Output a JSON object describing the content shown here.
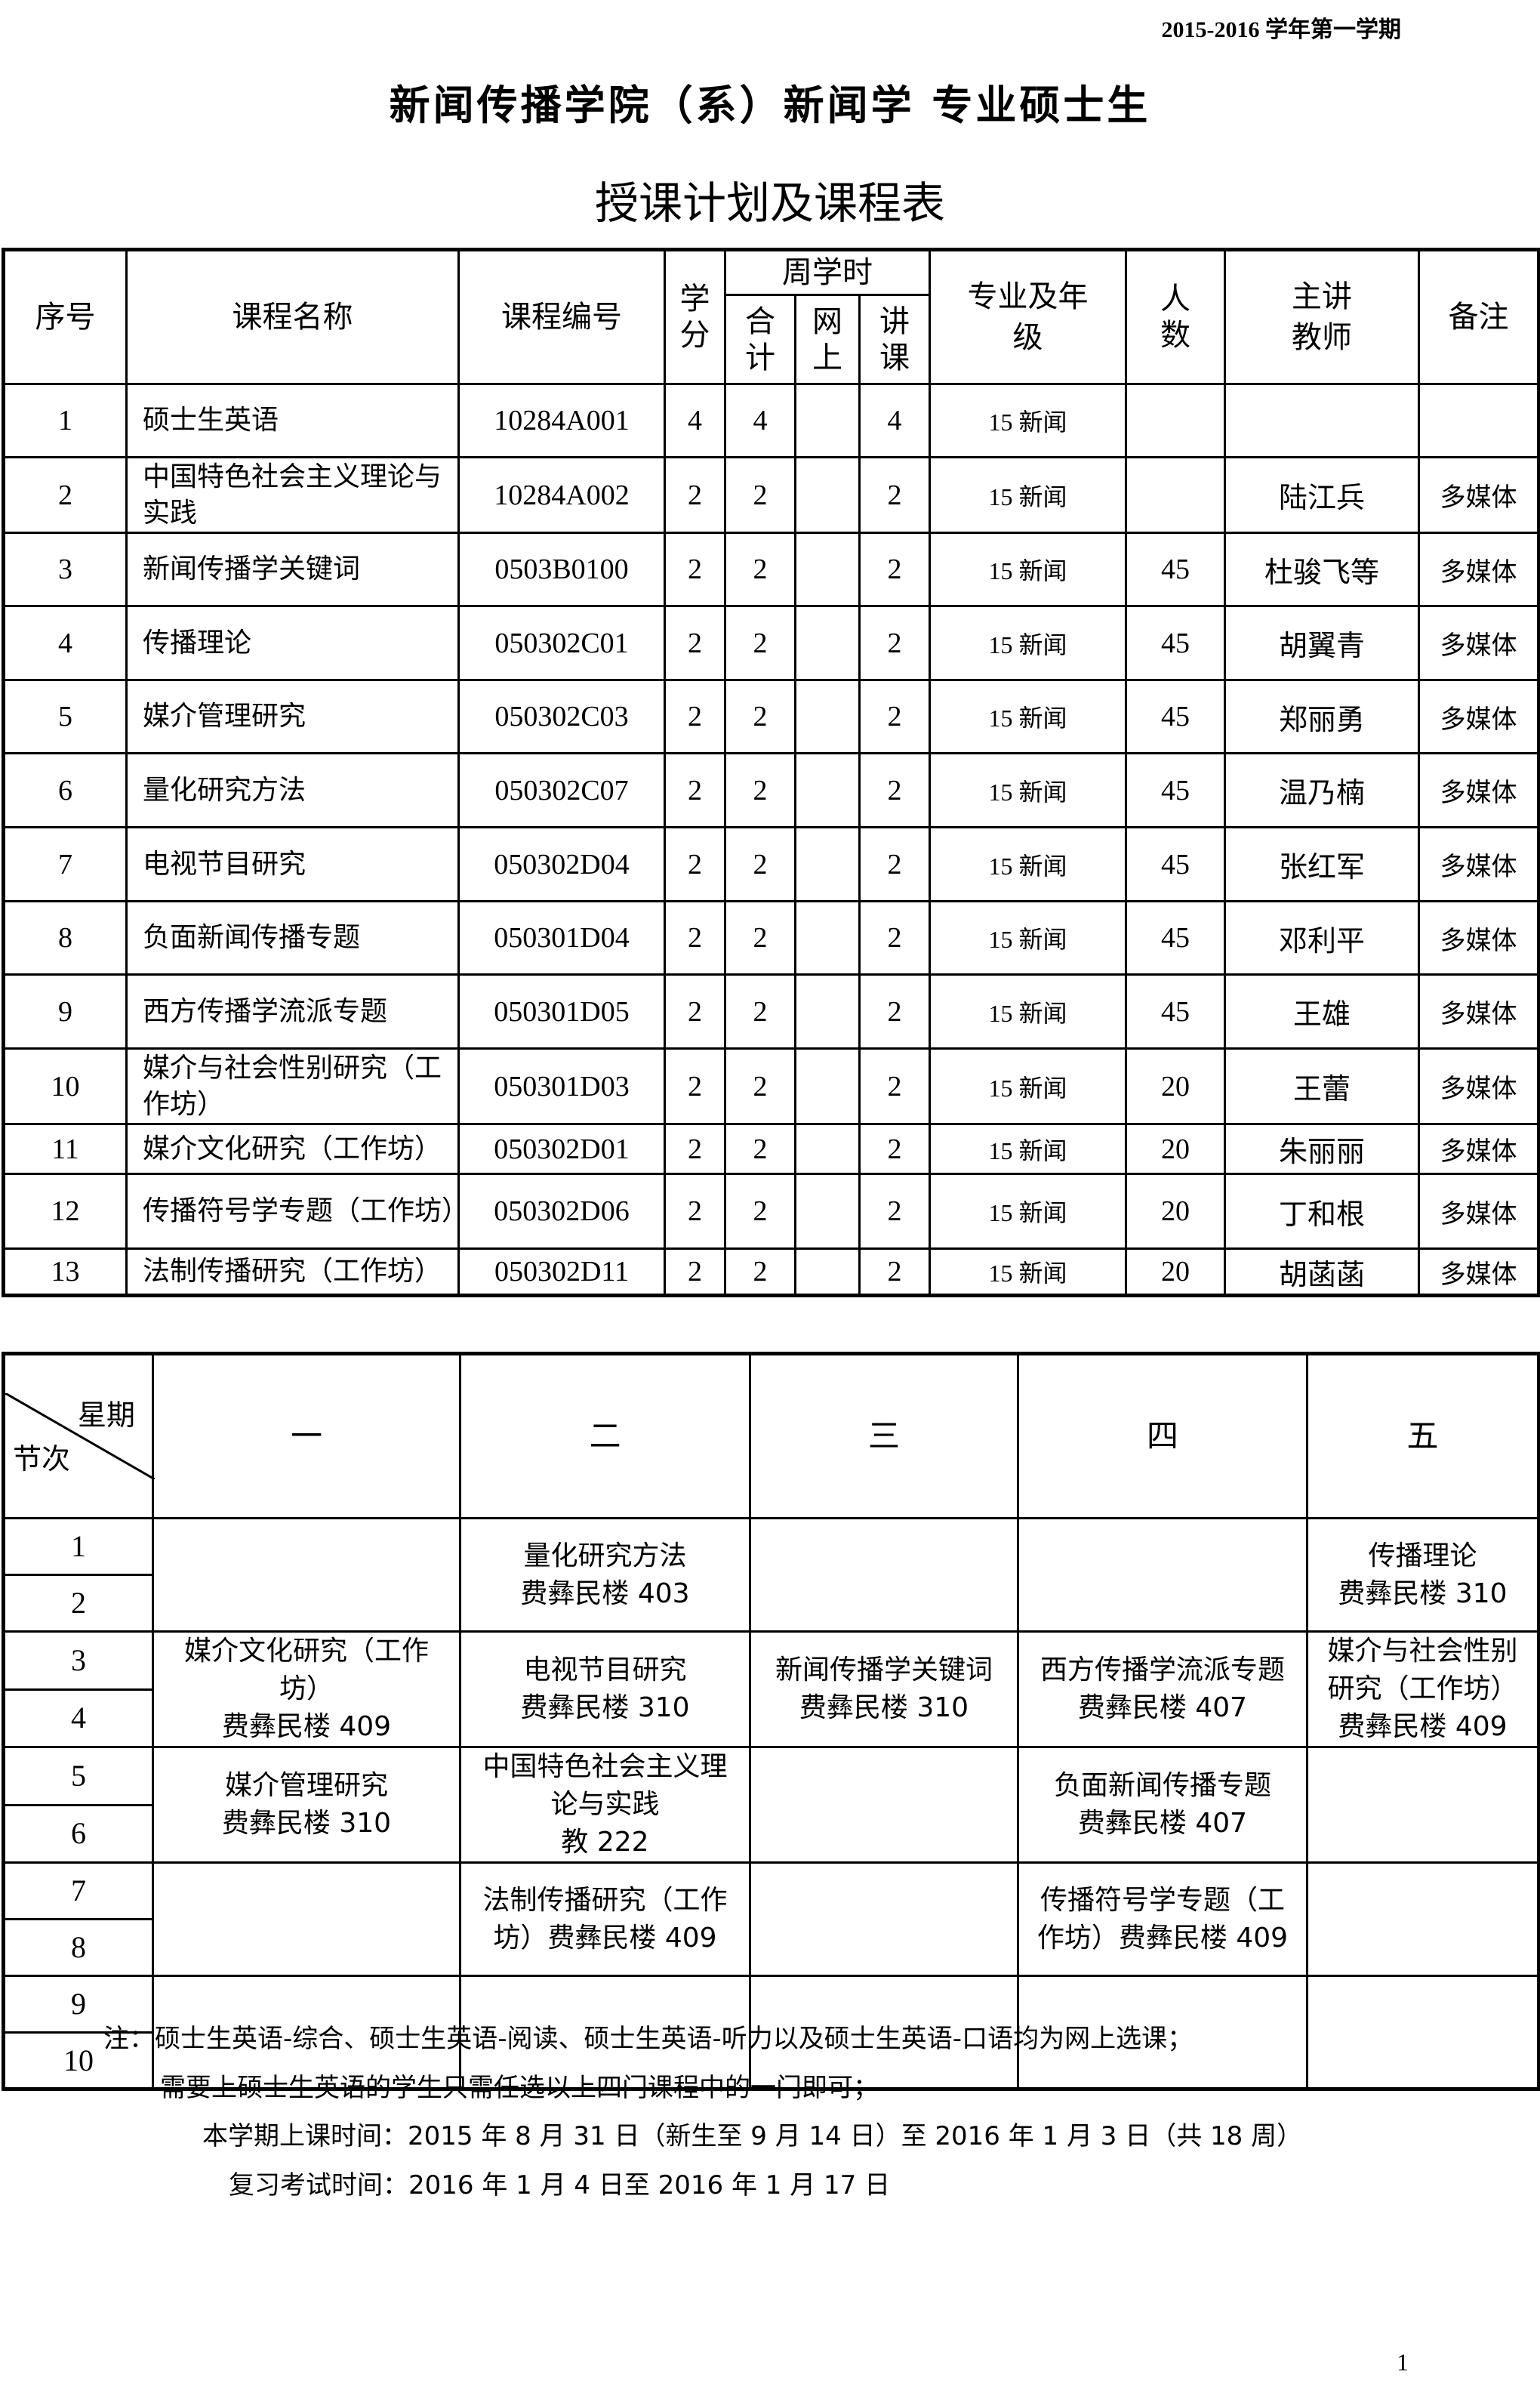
{
  "semester": "2015-2016 学年第一学期",
  "title_line1": "新闻传播学院（系）新闻学 专业硕士生",
  "title_line2": "授课计划及课程表",
  "course_table": {
    "headers": {
      "index": "序号",
      "name": "课程名称",
      "code": "课程编号",
      "credits": "学\n分",
      "weekly_hours": "周学时",
      "total": "合\n计",
      "online": "网\n上",
      "lecture": "讲\n课",
      "major_grade": "专业及年\n级",
      "count": "人\n数",
      "teacher": "主讲\n教师",
      "remarks": "备注"
    },
    "rows": [
      {
        "index": "1",
        "name": "硕士生英语",
        "code": "10284A001",
        "credits": "4",
        "total": "4",
        "online": "",
        "lecture": "4",
        "major": "15 新闻",
        "count": "",
        "teacher": "",
        "remarks": ""
      },
      {
        "index": "2",
        "name": "中国特色社会主义理论与实践",
        "code": "10284A002",
        "credits": "2",
        "total": "2",
        "online": "",
        "lecture": "2",
        "major": "15 新闻",
        "count": "",
        "teacher": "陆江兵",
        "remarks": "多媒体"
      },
      {
        "index": "3",
        "name": "新闻传播学关键词",
        "code": "0503B0100",
        "credits": "2",
        "total": "2",
        "online": "",
        "lecture": "2",
        "major": "15 新闻",
        "count": "45",
        "teacher": "杜骏飞等",
        "remarks": "多媒体"
      },
      {
        "index": "4",
        "name": "传播理论",
        "code": "050302C01",
        "credits": "2",
        "total": "2",
        "online": "",
        "lecture": "2",
        "major": "15 新闻",
        "count": "45",
        "teacher": "胡翼青",
        "remarks": "多媒体"
      },
      {
        "index": "5",
        "name": "媒介管理研究",
        "code": "050302C03",
        "credits": "2",
        "total": "2",
        "online": "",
        "lecture": "2",
        "major": "15 新闻",
        "count": "45",
        "teacher": "郑丽勇",
        "remarks": "多媒体"
      },
      {
        "index": "6",
        "name": "量化研究方法",
        "code": "050302C07",
        "credits": "2",
        "total": "2",
        "online": "",
        "lecture": "2",
        "major": "15 新闻",
        "count": "45",
        "teacher": "温乃楠",
        "remarks": "多媒体"
      },
      {
        "index": "7",
        "name": "电视节目研究",
        "code": "050302D04",
        "credits": "2",
        "total": "2",
        "online": "",
        "lecture": "2",
        "major": "15 新闻",
        "count": "45",
        "teacher": "张红军",
        "remarks": "多媒体"
      },
      {
        "index": "8",
        "name": "负面新闻传播专题",
        "code": "050301D04",
        "credits": "2",
        "total": "2",
        "online": "",
        "lecture": "2",
        "major": "15 新闻",
        "count": "45",
        "teacher": "邓利平",
        "remarks": "多媒体"
      },
      {
        "index": "9",
        "name": "西方传播学流派专题",
        "code": "050301D05",
        "credits": "2",
        "total": "2",
        "online": "",
        "lecture": "2",
        "major": "15 新闻",
        "count": "45",
        "teacher": "王雄",
        "remarks": "多媒体"
      },
      {
        "index": "10",
        "name": "媒介与社会性别研究（工作坊）",
        "code": "050301D03",
        "credits": "2",
        "total": "2",
        "online": "",
        "lecture": "2",
        "major": "15 新闻",
        "count": "20",
        "teacher": "王蕾",
        "remarks": "多媒体"
      },
      {
        "index": "11",
        "name": "媒介文化研究（工作坊）",
        "code": "050302D01",
        "credits": "2",
        "total": "2",
        "online": "",
        "lecture": "2",
        "major": "15 新闻",
        "count": "20",
        "teacher": "朱丽丽",
        "remarks": "多媒体"
      },
      {
        "index": "12",
        "name": "传播符号学专题（工作坊）",
        "code": "050302D06",
        "credits": "2",
        "total": "2",
        "online": "",
        "lecture": "2",
        "major": "15 新闻",
        "count": "20",
        "teacher": "丁和根",
        "remarks": "多媒体"
      },
      {
        "index": "13",
        "name": "法制传播研究（工作坊）",
        "code": "050302D11",
        "credits": "2",
        "total": "2",
        "online": "",
        "lecture": "2",
        "major": "15 新闻",
        "count": "20",
        "teacher": "胡菡菡",
        "remarks": "多媒体"
      }
    ]
  },
  "schedule": {
    "corner_day": "星期",
    "corner_period": "节次",
    "days": [
      "一",
      "二",
      "三",
      "四",
      "五"
    ],
    "blocks": [
      {
        "periods": [
          "1",
          "2"
        ],
        "cells": [
          "",
          "量化研究方法\n费彝民楼 403",
          "",
          "",
          "传播理论\n费彝民楼 310"
        ]
      },
      {
        "periods": [
          "3",
          "4"
        ],
        "cells": [
          "媒介文化研究（工作\n坊）\n费彝民楼 409",
          "电视节目研究\n费彝民楼 310",
          "新闻传播学关键词\n费彝民楼 310",
          "西方传播学流派专题\n费彝民楼 407",
          "媒介与社会性别\n研究（工作坊）\n费彝民楼 409"
        ]
      },
      {
        "periods": [
          "5",
          "6"
        ],
        "cells": [
          "媒介管理研究\n费彝民楼 310",
          "中国特色社会主义理\n论与实践\n教 222",
          "",
          "负面新闻传播专题\n费彝民楼 407",
          ""
        ]
      },
      {
        "periods": [
          "7",
          "8"
        ],
        "cells": [
          "",
          "法制传播研究（工作\n坊）费彝民楼 409",
          "",
          "传播符号学专题（工\n作坊）费彝民楼 409",
          ""
        ]
      },
      {
        "periods": [
          "9",
          "10"
        ],
        "cells": [
          "",
          "",
          "",
          "",
          ""
        ]
      }
    ]
  },
  "notes": [
    "注：硕士生英语-综合、硕士生英语-阅读、硕士生英语-听力以及硕士生英语-口语均为网上选课；",
    "需要上硕士生英语的学生只需任选以上四门课程中的一门即可；",
    "本学期上课时间：2015 年 8 月 31 日（新生至 9 月 14 日）至 2016 年 1 月 3 日（共 18 周）",
    "复习考试时间：2016 年 1 月 4 日至 2016 年 1 月 17 日"
  ],
  "page_number": "1"
}
